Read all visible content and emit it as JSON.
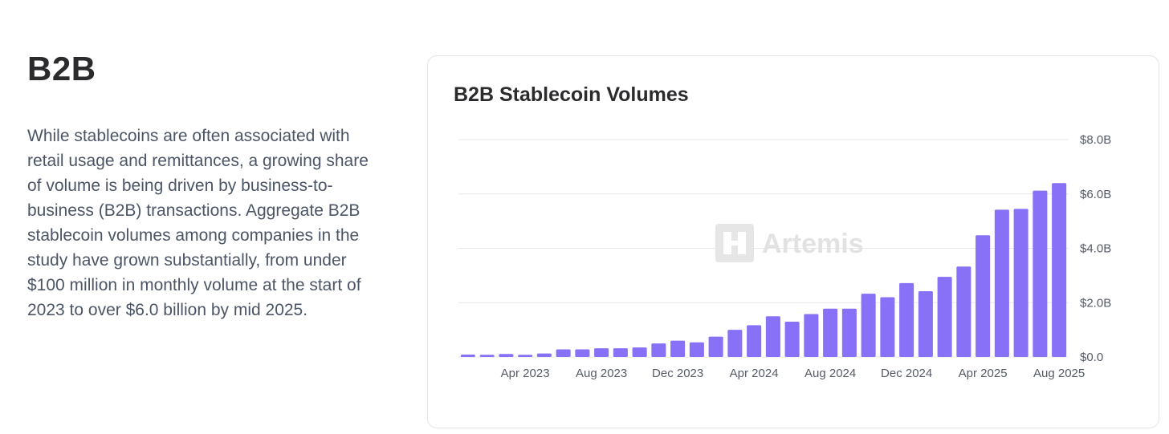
{
  "section": {
    "heading": "B2B",
    "paragraph": "While stablecoins are often associated with retail usage and remittances, a growing share of volume is being driven by business-to-business (B2B) transactions. Aggregate B2B stablecoin volumes among companies in the study have grown substantially, from under $100 million in monthly volume at the start of 2023 to over $6.0 billion by mid 2025."
  },
  "watermark": {
    "text": "Artemis",
    "icon": "artemis-logo-icon"
  },
  "colors": {
    "bar": "#8870f7",
    "grid": "#e7e7ea",
    "text": "#2b2b2e"
  },
  "chart_data": {
    "type": "bar",
    "title": "B2B Stablecoin Volumes",
    "xlabel": "",
    "ylabel": "",
    "unit": "USD billions",
    "ylim": [
      0,
      8
    ],
    "y_ticks": [
      0,
      2,
      4,
      6,
      8
    ],
    "y_tick_labels": [
      "$0.0",
      "$2.0B",
      "$4.0B",
      "$6.0B",
      "$8.0B"
    ],
    "x_tick_labels": [
      "Apr 2023",
      "Aug 2023",
      "Dec 2023",
      "Apr 2024",
      "Aug 2024",
      "Dec 2024",
      "Apr 2025",
      "Aug 2025"
    ],
    "grid": true,
    "y_axis_side": "right",
    "categories": [
      "Jan 2023",
      "Feb 2023",
      "Mar 2023",
      "Apr 2023",
      "May 2023",
      "Jun 2023",
      "Jul 2023",
      "Aug 2023",
      "Sep 2023",
      "Oct 2023",
      "Nov 2023",
      "Dec 2023",
      "Jan 2024",
      "Feb 2024",
      "Mar 2024",
      "Apr 2024",
      "May 2024",
      "Jun 2024",
      "Jul 2024",
      "Aug 2024",
      "Sep 2024",
      "Oct 2024",
      "Nov 2024",
      "Dec 2024",
      "Jan 2025",
      "Feb 2025",
      "Mar 2025",
      "Apr 2025",
      "May 2025",
      "Jun 2025",
      "Jul 2025",
      "Aug 2025"
    ],
    "values": [
      0.09,
      0.08,
      0.11,
      0.08,
      0.13,
      0.28,
      0.28,
      0.32,
      0.32,
      0.35,
      0.5,
      0.6,
      0.54,
      0.75,
      1.0,
      1.17,
      1.5,
      1.3,
      1.58,
      1.78,
      1.78,
      2.33,
      2.2,
      2.72,
      2.42,
      2.95,
      3.33,
      4.48,
      5.42,
      5.45,
      6.12,
      6.4
    ]
  }
}
